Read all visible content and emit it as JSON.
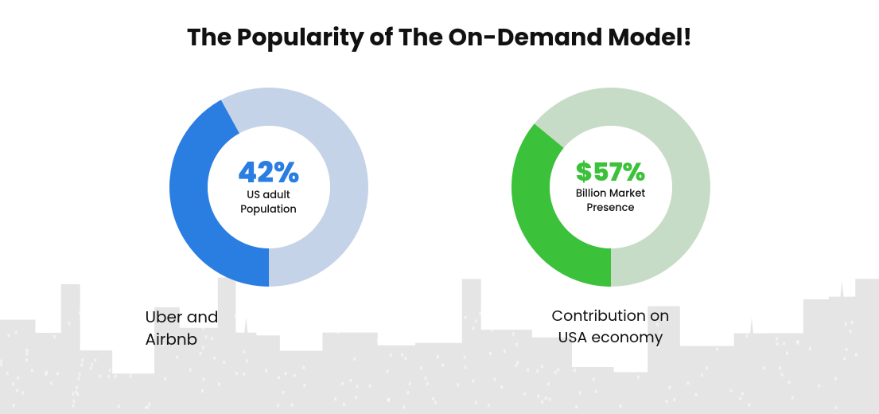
{
  "title": {
    "text": "The Popularity of The On-Demand Model!",
    "fontsize": 30,
    "color": "#111111"
  },
  "background_color": "#ffffff",
  "skyline_color": "#e5e5e5",
  "donuts": [
    {
      "id": "uber-airbnb",
      "percent": 42,
      "value_text": "42%",
      "sub_text_1": "US adult",
      "sub_text_2": "Population",
      "caption_line_1": "Uber and",
      "caption_line_2": "Airbnb",
      "caption_fontsize": 20,
      "caption_align": "left",
      "fill_color": "#2a7de1",
      "track_color": "#c5d3e8",
      "hole_color": "#ffffff",
      "value_color": "#2a7de1",
      "sub_color": "#111111",
      "value_fontsize": 36,
      "sub_fontsize": 13,
      "size": 250,
      "thickness": 48,
      "start_angle": 180
    },
    {
      "id": "usa-economy",
      "percent": 36,
      "value_text": "$57%",
      "sub_text_1": "Billion Market",
      "sub_text_2": "Presence",
      "caption_line_1": "Contribution on",
      "caption_line_2": "USA economy",
      "caption_fontsize": 19,
      "caption_align": "center",
      "fill_color": "#3cc13b",
      "track_color": "#c7dcc7",
      "hole_color": "#ffffff",
      "value_color": "#3cc13b",
      "sub_color": "#111111",
      "value_fontsize": 32,
      "sub_fontsize": 13,
      "size": 250,
      "thickness": 48,
      "start_angle": 180
    }
  ]
}
